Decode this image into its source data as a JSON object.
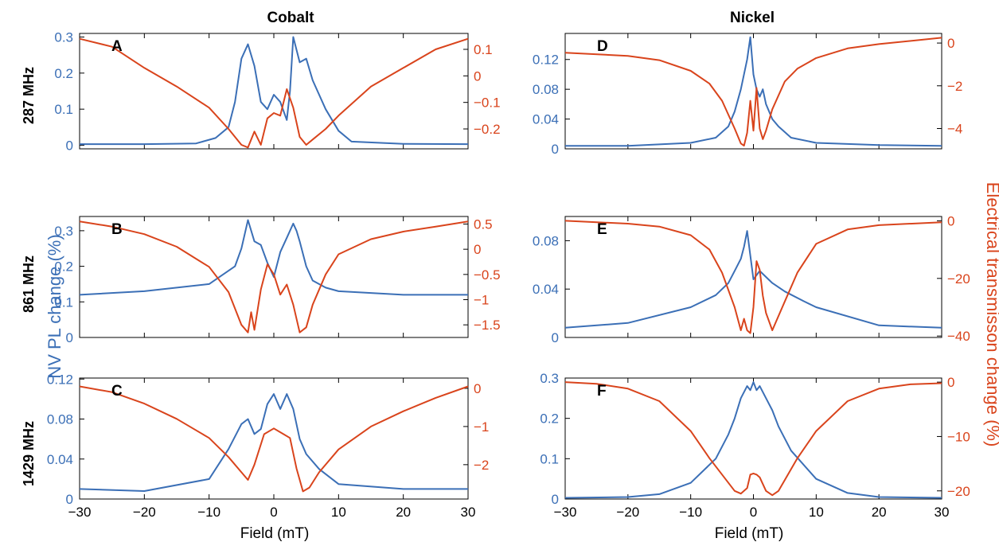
{
  "figure": {
    "column_titles": [
      "Cobalt",
      "Nickel"
    ],
    "row_labels": [
      "287 MHz",
      "861 MHz",
      "1429 MHz"
    ],
    "left_axis_label": "NV PL change (%)",
    "right_axis_label": "Electrical transmisson change (%)",
    "x_axis_label": "Field (mT)",
    "colors": {
      "pl": "#3b6fb6",
      "trans": "#d9441c",
      "axis": "#000000"
    }
  },
  "chart_data": [
    {
      "type": "line",
      "panel": "A",
      "column": "Cobalt",
      "row": "287 MHz",
      "xlim": [
        -30,
        30
      ],
      "xticks": [
        -30,
        -20,
        -10,
        0,
        10,
        20,
        30
      ],
      "left": {
        "ylim": [
          -0.01,
          0.31
        ],
        "ticks": [
          0,
          0.1,
          0.2,
          0.3
        ],
        "labels": [
          "0",
          "0.1",
          "0.2",
          "0.3"
        ]
      },
      "right": {
        "ylim": [
          -0.275,
          0.16
        ],
        "ticks": [
          -0.2,
          -0.1,
          0,
          0.1
        ],
        "labels": [
          "−0.2",
          "−0.1",
          "0",
          "0.1"
        ]
      },
      "series": [
        {
          "axis": "left",
          "x": [
            -30,
            -20,
            -12,
            -9,
            -7,
            -6,
            -5,
            -4,
            -3,
            -2,
            -1,
            0,
            1,
            2,
            2.5,
            3,
            4,
            5,
            6,
            8,
            10,
            12,
            20,
            30
          ],
          "y": [
            0.003,
            0.003,
            0.005,
            0.02,
            0.05,
            0.12,
            0.24,
            0.28,
            0.22,
            0.12,
            0.1,
            0.14,
            0.12,
            0.07,
            0.15,
            0.3,
            0.23,
            0.24,
            0.18,
            0.1,
            0.04,
            0.01,
            0.004,
            0.003
          ]
        },
        {
          "axis": "right",
          "x": [
            -30,
            -25,
            -20,
            -15,
            -10,
            -7,
            -5,
            -4,
            -3,
            -2,
            -1,
            0,
            1,
            2,
            3,
            4,
            5,
            6,
            8,
            10,
            15,
            20,
            25,
            30
          ],
          "y": [
            0.14,
            0.11,
            0.03,
            -0.04,
            -0.12,
            -0.2,
            -0.26,
            -0.27,
            -0.21,
            -0.26,
            -0.16,
            -0.14,
            -0.15,
            -0.05,
            -0.12,
            -0.23,
            -0.26,
            -0.24,
            -0.2,
            -0.15,
            -0.04,
            0.03,
            0.1,
            0.14
          ]
        }
      ]
    },
    {
      "type": "line",
      "panel": "B",
      "column": "Cobalt",
      "row": "861 MHz",
      "xlim": [
        -30,
        30
      ],
      "xticks": [
        -30,
        -20,
        -10,
        0,
        10,
        20,
        30
      ],
      "left": {
        "ylim": [
          0,
          0.34
        ],
        "ticks": [
          0,
          0.1,
          0.2,
          0.3
        ],
        "labels": [
          "0",
          "0.1",
          "0.2",
          "0.3"
        ]
      },
      "right": {
        "ylim": [
          -1.75,
          0.65
        ],
        "ticks": [
          -1.5,
          -1,
          -0.5,
          0,
          0.5
        ],
        "labels": [
          "−1.5",
          "−1",
          "−0.5",
          "0",
          "0.5"
        ]
      },
      "series": [
        {
          "axis": "left",
          "x": [
            -30,
            -20,
            -10,
            -6,
            -5,
            -4,
            -3,
            -2,
            -1,
            0,
            1,
            2,
            3,
            3.5,
            4,
            5,
            6,
            8,
            10,
            20,
            30
          ],
          "y": [
            0.12,
            0.13,
            0.15,
            0.2,
            0.25,
            0.33,
            0.27,
            0.26,
            0.21,
            0.17,
            0.24,
            0.28,
            0.32,
            0.3,
            0.27,
            0.2,
            0.16,
            0.14,
            0.13,
            0.12,
            0.12
          ]
        },
        {
          "axis": "right",
          "x": [
            -30,
            -25,
            -20,
            -15,
            -10,
            -7,
            -5,
            -4,
            -3.5,
            -3,
            -2,
            -1,
            0,
            1,
            2,
            3,
            4,
            5,
            6,
            8,
            10,
            15,
            20,
            25,
            30
          ],
          "y": [
            0.55,
            0.45,
            0.3,
            0.05,
            -0.35,
            -0.85,
            -1.5,
            -1.65,
            -1.25,
            -1.6,
            -0.8,
            -0.3,
            -0.5,
            -0.9,
            -0.7,
            -1.1,
            -1.65,
            -1.55,
            -1.1,
            -0.5,
            -0.1,
            0.2,
            0.35,
            0.45,
            0.55
          ]
        }
      ]
    },
    {
      "type": "line",
      "panel": "C",
      "column": "Cobalt",
      "row": "1429 MHz",
      "xlim": [
        -30,
        30
      ],
      "xticks": [
        -30,
        -20,
        -10,
        0,
        10,
        20,
        30
      ],
      "left": {
        "ylim": [
          0,
          0.121
        ],
        "ticks": [
          0,
          0.04,
          0.08,
          0.12
        ],
        "labels": [
          "0",
          "0.04",
          "0.08",
          "0.12"
        ]
      },
      "right": {
        "ylim": [
          -2.9,
          0.27
        ],
        "ticks": [
          -2,
          -1,
          0
        ],
        "labels": [
          "−2",
          "−1",
          "0"
        ]
      },
      "series": [
        {
          "axis": "left",
          "x": [
            -30,
            -20,
            -10,
            -7,
            -5,
            -4,
            -3,
            -2,
            -1,
            0,
            1,
            2,
            3,
            4,
            5,
            7,
            10,
            20,
            30
          ],
          "y": [
            0.01,
            0.008,
            0.02,
            0.05,
            0.075,
            0.08,
            0.065,
            0.07,
            0.095,
            0.105,
            0.09,
            0.105,
            0.09,
            0.06,
            0.045,
            0.03,
            0.015,
            0.01,
            0.01
          ]
        },
        {
          "axis": "right",
          "x": [
            -30,
            -25,
            -20,
            -15,
            -10,
            -7,
            -5,
            -4,
            -3,
            -1.5,
            0,
            1.5,
            2.5,
            3.5,
            4.5,
            5.5,
            7,
            10,
            15,
            20,
            25,
            30
          ],
          "y": [
            0.05,
            -0.1,
            -0.4,
            -0.8,
            -1.3,
            -1.8,
            -2.2,
            -2.4,
            -2.0,
            -1.2,
            -1.05,
            -1.2,
            -1.3,
            -2.1,
            -2.7,
            -2.6,
            -2.2,
            -1.6,
            -1.0,
            -0.6,
            -0.25,
            0.05
          ]
        }
      ]
    },
    {
      "type": "line",
      "panel": "D",
      "column": "Nickel",
      "row": "287 MHz",
      "xlim": [
        -30,
        30
      ],
      "xticks": [
        -30,
        -20,
        -10,
        0,
        10,
        20,
        30
      ],
      "left": {
        "ylim": [
          0,
          0.155
        ],
        "ticks": [
          0,
          0.04,
          0.08,
          0.12
        ],
        "labels": [
          "0",
          "0.04",
          "0.08",
          "0.12"
        ]
      },
      "right": {
        "ylim": [
          -4.95,
          0.45
        ],
        "ticks": [
          -4,
          -2,
          0
        ],
        "labels": [
          "−4",
          "−2",
          "0"
        ]
      },
      "series": [
        {
          "axis": "left",
          "x": [
            -30,
            -20,
            -10,
            -6,
            -4,
            -3,
            -2,
            -1,
            -0.5,
            0,
            0.5,
            1,
            1.5,
            2,
            3,
            4,
            6,
            10,
            20,
            30
          ],
          "y": [
            0.004,
            0.004,
            0.008,
            0.015,
            0.03,
            0.05,
            0.08,
            0.12,
            0.15,
            0.1,
            0.08,
            0.07,
            0.08,
            0.06,
            0.04,
            0.03,
            0.015,
            0.008,
            0.005,
            0.004
          ]
        },
        {
          "axis": "right",
          "x": [
            -30,
            -20,
            -15,
            -10,
            -7,
            -5,
            -3,
            -2,
            -1.5,
            -1,
            -0.5,
            0,
            0.5,
            1,
            1.5,
            2,
            3,
            5,
            7,
            10,
            15,
            20,
            30
          ],
          "y": [
            -0.45,
            -0.6,
            -0.8,
            -1.3,
            -1.9,
            -2.7,
            -4.0,
            -4.7,
            -4.8,
            -4.2,
            -2.7,
            -4.1,
            -2.1,
            -4.0,
            -4.5,
            -4.1,
            -3.1,
            -1.8,
            -1.2,
            -0.7,
            -0.25,
            -0.05,
            0.25
          ]
        }
      ]
    },
    {
      "type": "line",
      "panel": "E",
      "column": "Nickel",
      "row": "861 MHz",
      "xlim": [
        -30,
        30
      ],
      "xticks": [
        -30,
        -20,
        -10,
        0,
        10,
        20,
        30
      ],
      "left": {
        "ylim": [
          0,
          0.1
        ],
        "ticks": [
          0,
          0.04,
          0.08
        ],
        "labels": [
          "0",
          "0.04",
          "0.08"
        ]
      },
      "right": {
        "ylim": [
          -40.5,
          1.5
        ],
        "ticks": [
          -40,
          -20,
          0
        ],
        "labels": [
          "−40",
          "−20",
          "0"
        ]
      },
      "series": [
        {
          "axis": "left",
          "x": [
            -30,
            -20,
            -10,
            -6,
            -4,
            -3,
            -2,
            -1.5,
            -1,
            0,
            1,
            2,
            3,
            5,
            8,
            10,
            20,
            30
          ],
          "y": [
            0.008,
            0.012,
            0.025,
            0.035,
            0.045,
            0.055,
            0.065,
            0.075,
            0.088,
            0.048,
            0.055,
            0.05,
            0.045,
            0.038,
            0.03,
            0.025,
            0.01,
            0.008
          ]
        },
        {
          "axis": "right",
          "x": [
            -30,
            -20,
            -15,
            -10,
            -7,
            -5,
            -3,
            -2,
            -1.5,
            -1,
            -0.5,
            0,
            0.5,
            1,
            1.5,
            2,
            3,
            5,
            7,
            10,
            15,
            20,
            30
          ],
          "y": [
            0,
            -1,
            -2,
            -5,
            -10,
            -18,
            -30,
            -38,
            -34,
            -38,
            -39,
            -30,
            -14,
            -17,
            -26,
            -32,
            -38,
            -28,
            -18,
            -8,
            -3,
            -1.5,
            -0.5
          ]
        }
      ]
    },
    {
      "type": "line",
      "panel": "F",
      "column": "Nickel",
      "row": "1429 MHz",
      "xlim": [
        -30,
        30
      ],
      "xticks": [
        -30,
        -20,
        -10,
        0,
        10,
        20,
        30
      ],
      "left": {
        "ylim": [
          0,
          0.3
        ],
        "ticks": [
          0,
          0.1,
          0.2,
          0.3
        ],
        "labels": [
          "0",
          "0.1",
          "0.2",
          "0.3"
        ]
      },
      "right": {
        "ylim": [
          -21.5,
          0.75
        ],
        "ticks": [
          -20,
          -10,
          0
        ],
        "labels": [
          "−20",
          "−10",
          "0"
        ]
      },
      "series": [
        {
          "axis": "left",
          "x": [
            -30,
            -20,
            -15,
            -10,
            -6,
            -4,
            -3,
            -2,
            -1,
            -0.5,
            0,
            0.5,
            1,
            2,
            3,
            4,
            6,
            10,
            15,
            20,
            30
          ],
          "y": [
            0.003,
            0.005,
            0.012,
            0.04,
            0.1,
            0.16,
            0.2,
            0.25,
            0.28,
            0.27,
            0.29,
            0.27,
            0.28,
            0.25,
            0.22,
            0.18,
            0.12,
            0.05,
            0.015,
            0.005,
            0.003
          ]
        },
        {
          "axis": "right",
          "x": [
            -30,
            -25,
            -20,
            -15,
            -10,
            -7,
            -5,
            -3,
            -2,
            -1,
            -0.5,
            0,
            0.5,
            1,
            2,
            3,
            4,
            5,
            7,
            10,
            15,
            20,
            25,
            30
          ],
          "y": [
            0,
            -0.3,
            -1.2,
            -3.5,
            -9,
            -14,
            -17,
            -20,
            -20.5,
            -19.5,
            -17,
            -16.8,
            -17,
            -17.5,
            -20,
            -20.8,
            -20,
            -18,
            -14,
            -9,
            -3.5,
            -1.2,
            -0.4,
            -0.2
          ]
        }
      ]
    }
  ]
}
